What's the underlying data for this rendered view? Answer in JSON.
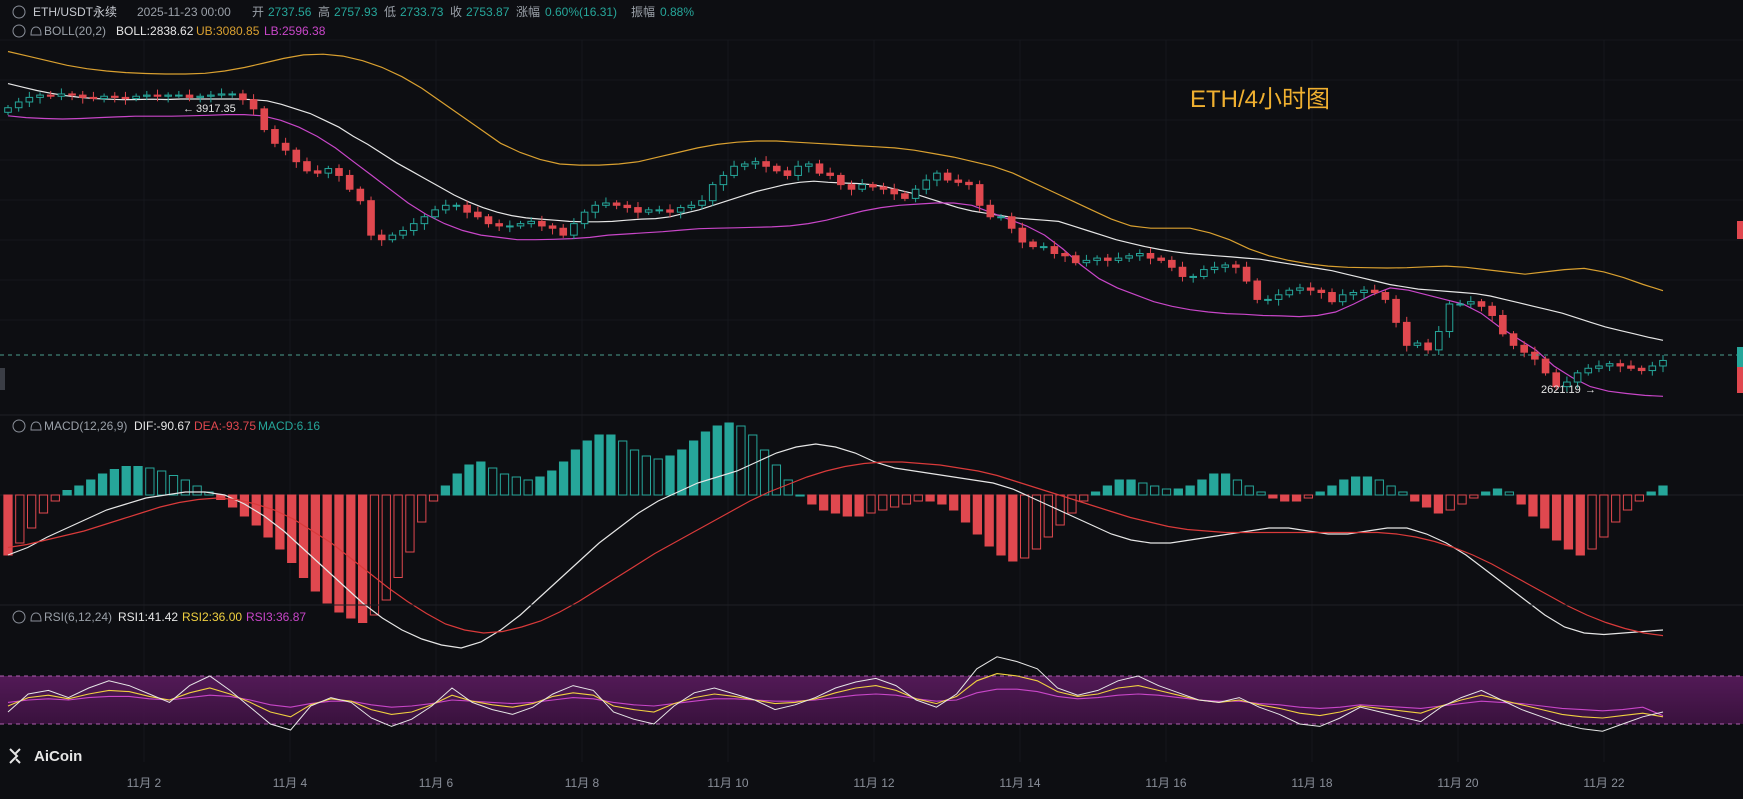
{
  "header": {
    "symbol": "ETH/USDT永续",
    "datetime": "2025-11-23 00:00",
    "open_label": "开",
    "open": "2737.56",
    "high_label": "高",
    "high": "2757.93",
    "low_label": "低",
    "low": "2733.73",
    "close_label": "收",
    "close": "2753.87",
    "change_label": "涨幅",
    "change": "0.60%(16.31)",
    "amplitude_label": "振幅",
    "amplitude": "0.88%"
  },
  "boll": {
    "name": "BOLL(20,2)",
    "boll": "BOLL:2838.62",
    "ub": "UB:3080.85",
    "lb": "LB:2596.38"
  },
  "macd": {
    "name": "MACD(12,26,9)",
    "dif": "DIF:-90.67",
    "dea": "DEA:-93.75",
    "macd": "MACD:6.16"
  },
  "rsi": {
    "name": "RSI(6,12,24)",
    "rsi1": "RSI1:41.42",
    "rsi2": "RSI2:36.00",
    "rsi3": "RSI3:36.87"
  },
  "annotation": "ETH/4小时图",
  "high_marker": "3917.35",
  "low_marker": "2621.19",
  "logo": "AiCoin",
  "colors": {
    "up": "#26a69a",
    "down": "#e0484f",
    "mid": "#e6e6e6",
    "ub": "#d9a030",
    "lb": "#c846c8",
    "dea": "#d93a3a",
    "rsi1": "#e6e6e6",
    "rsi2": "#f0d040",
    "rsi3": "#c846c8",
    "annotation": "#f0b030"
  },
  "chart_data": {
    "type": "candlestick",
    "interval": "4h",
    "x_ticks": [
      "11月 2",
      "11月 4",
      "11月 6",
      "11月 8",
      "11月 10",
      "11月 12",
      "11月 14",
      "11月 16",
      "11月 18",
      "11月 20",
      "11月 22"
    ],
    "close": [
      3855,
      3880,
      3900,
      3910,
      3905,
      3915,
      3910,
      3900,
      3895,
      3905,
      3900,
      3895,
      3905,
      3910,
      3905,
      3910,
      3910,
      3900,
      3905,
      3910,
      3915,
      3915,
      3890,
      3850,
      3760,
      3700,
      3670,
      3620,
      3580,
      3570,
      3590,
      3560,
      3500,
      3450,
      3300,
      3280,
      3300,
      3320,
      3350,
      3380,
      3410,
      3430,
      3430,
      3400,
      3380,
      3350,
      3340,
      3340,
      3350,
      3360,
      3340,
      3330,
      3300,
      3350,
      3400,
      3430,
      3440,
      3430,
      3420,
      3400,
      3410,
      3410,
      3400,
      3420,
      3430,
      3450,
      3520,
      3560,
      3600,
      3610,
      3620,
      3600,
      3580,
      3560,
      3600,
      3610,
      3570,
      3560,
      3520,
      3500,
      3520,
      3510,
      3500,
      3480,
      3460,
      3500,
      3540,
      3570,
      3540,
      3530,
      3520,
      3430,
      3380,
      3380,
      3330,
      3270,
      3250,
      3250,
      3220,
      3210,
      3180,
      3190,
      3200,
      3190,
      3200,
      3210,
      3220,
      3200,
      3190,
      3160,
      3120,
      3120,
      3150,
      3160,
      3170,
      3160,
      3100,
      3020,
      3020,
      3040,
      3060,
      3070,
      3060,
      3050,
      3010,
      3040,
      3050,
      3060,
      3050,
      3020,
      2920,
      2820,
      2830,
      2800,
      2880,
      3000,
      3000,
      3010,
      2990,
      2950,
      2870,
      2820,
      2790,
      2760,
      2700,
      2640,
      2660,
      2700,
      2720,
      2730,
      2740,
      2730,
      2720,
      2710,
      2730,
      2754
    ],
    "series": [
      {
        "name": "BOLL",
        "values": [
          3960,
          3945,
          3930,
          3918,
          3908,
          3900,
          3895,
          3892,
          3890,
          3891,
          3892,
          3891,
          3893,
          3893,
          3893,
          3893,
          3893,
          3890,
          3885,
          3870,
          3850,
          3830,
          3800,
          3770,
          3730,
          3695,
          3655,
          3615,
          3580,
          3545,
          3510,
          3475,
          3445,
          3420,
          3400,
          3385,
          3375,
          3370,
          3365,
          3360,
          3358,
          3358,
          3360,
          3365,
          3370,
          3372,
          3380,
          3395,
          3410,
          3430,
          3450,
          3470,
          3490,
          3505,
          3520,
          3530,
          3535,
          3530,
          3527,
          3525,
          3520,
          3510,
          3495,
          3480,
          3460,
          3440,
          3420,
          3405,
          3395,
          3385,
          3375,
          3370,
          3365,
          3360,
          3340,
          3320,
          3300,
          3280,
          3265,
          3250,
          3238,
          3228,
          3220,
          3215,
          3210,
          3205,
          3200,
          3195,
          3185,
          3175,
          3165,
          3155,
          3145,
          3130,
          3115,
          3100,
          3085,
          3075,
          3065,
          3060,
          3055,
          3050,
          3045,
          3035,
          3020,
          3005,
          2990,
          2975,
          2960,
          2940,
          2920,
          2900,
          2885,
          2870,
          2855,
          2842
        ]
      },
      {
        "name": "UB",
        "values": [
          4100,
          4080,
          4060,
          4040,
          4025,
          4015,
          4008,
          4004,
          4002,
          4002,
          4005,
          4015,
          4030,
          4050,
          4070,
          4085,
          4088,
          4080,
          4060,
          4030,
          3990,
          3940,
          3880,
          3820,
          3760,
          3700,
          3660,
          3630,
          3610,
          3605,
          3605,
          3610,
          3620,
          3640,
          3660,
          3680,
          3695,
          3705,
          3710,
          3710,
          3705,
          3700,
          3695,
          3690,
          3685,
          3680,
          3670,
          3655,
          3640,
          3620,
          3600,
          3570,
          3530,
          3490,
          3450,
          3410,
          3370,
          3340,
          3330,
          3330,
          3330,
          3310,
          3280,
          3240,
          3210,
          3190,
          3175,
          3165,
          3160,
          3158,
          3157,
          3158,
          3162,
          3165,
          3160,
          3150,
          3140,
          3130,
          3140,
          3150,
          3155,
          3140,
          3115,
          3085,
          3058
        ]
      },
      {
        "name": "LB",
        "values": [
          3820,
          3812,
          3808,
          3806,
          3808,
          3812,
          3815,
          3818,
          3818,
          3818,
          3820,
          3822,
          3825,
          3825,
          3820,
          3800,
          3770,
          3730,
          3680,
          3620,
          3560,
          3500,
          3440,
          3390,
          3350,
          3320,
          3300,
          3290,
          3280,
          3280,
          3282,
          3285,
          3290,
          3300,
          3305,
          3310,
          3315,
          3322,
          3328,
          3330,
          3332,
          3334,
          3336,
          3340,
          3350,
          3365,
          3385,
          3405,
          3420,
          3430,
          3435,
          3440,
          3440,
          3430,
          3400,
          3370,
          3340,
          3300,
          3240,
          3170,
          3110,
          3070,
          3040,
          3010,
          2990,
          2975,
          2965,
          2958,
          2955,
          2950,
          2948,
          2945,
          2950,
          2965,
          3000,
          3040,
          3070,
          3060,
          3040,
          3020,
          3000,
          2960,
          2900,
          2850,
          2800,
          2730,
          2680,
          2640,
          2620,
          2610,
          2602,
          2598
        ]
      }
    ],
    "macd": {
      "hist": [
        -40,
        -32,
        -22,
        -12,
        -4,
        3,
        6,
        10,
        14,
        17,
        19,
        19,
        18,
        16,
        13,
        10,
        6,
        2,
        -3,
        -8,
        -14,
        -20,
        -28,
        -36,
        -45,
        -55,
        -64,
        -72,
        -78,
        -82,
        -85,
        -80,
        -70,
        -55,
        -38,
        -18,
        -4,
        6,
        14,
        20,
        22,
        18,
        14,
        12,
        10,
        12,
        16,
        22,
        30,
        36,
        40,
        40,
        36,
        30,
        26,
        24,
        26,
        30,
        36,
        42,
        46,
        48,
        46,
        40,
        30,
        20,
        10,
        0,
        -6,
        -10,
        -12,
        -14,
        -14,
        -12,
        -10,
        -8,
        -6,
        -4,
        -4,
        -6,
        -10,
        -18,
        -26,
        -34,
        -40,
        -44,
        -42,
        -36,
        -28,
        -20,
        -12,
        -4,
        2,
        6,
        10,
        10,
        8,
        6,
        4,
        4,
        6,
        10,
        14,
        14,
        10,
        6,
        2,
        -2,
        -4,
        -4,
        -2,
        2,
        6,
        10,
        12,
        12,
        10,
        6,
        2,
        -4,
        -8,
        -12,
        -10,
        -6,
        -2,
        2,
        4,
        2,
        -6,
        -14,
        -22,
        -30,
        -36,
        -40,
        -36,
        -28,
        -18,
        -10,
        -4,
        2,
        6
      ],
      "dif": [
        -40,
        -35,
        -28,
        -22,
        -16,
        -10,
        -6,
        -2,
        0,
        2,
        2,
        0,
        -6,
        -14,
        -24,
        -36,
        -48,
        -60,
        -72,
        -82,
        -90,
        -96,
        -100,
        -102,
        -98,
        -90,
        -80,
        -68,
        -56,
        -44,
        -32,
        -22,
        -12,
        -4,
        2,
        8,
        12,
        16,
        22,
        28,
        32,
        34,
        32,
        28,
        22,
        18,
        16,
        14,
        12,
        10,
        8,
        4,
        -2,
        -8,
        -14,
        -20,
        -26,
        -30,
        -32,
        -32,
        -30,
        -28,
        -26,
        -24,
        -22,
        -22,
        -24,
        -26,
        -26,
        -24,
        -22,
        -22,
        -26,
        -32,
        -40,
        -50,
        -60,
        -70,
        -80,
        -88,
        -92,
        -93,
        -92,
        -91,
        -90
      ],
      "dea": [
        -35,
        -33,
        -30,
        -27,
        -24,
        -20,
        -16,
        -12,
        -8,
        -5,
        -3,
        -2,
        -3,
        -6,
        -10,
        -16,
        -24,
        -32,
        -42,
        -52,
        -62,
        -71,
        -79,
        -86,
        -90,
        -92,
        -91,
        -88,
        -84,
        -78,
        -71,
        -63,
        -55,
        -47,
        -39,
        -32,
        -25,
        -18,
        -11,
        -4,
        2,
        7,
        12,
        16,
        19,
        21,
        22,
        22,
        21,
        20,
        18,
        16,
        13,
        9,
        5,
        1,
        -3,
        -7,
        -11,
        -15,
        -18,
        -21,
        -23,
        -24,
        -25,
        -25,
        -25,
        -25,
        -25,
        -25,
        -25,
        -25,
        -25,
        -26,
        -28,
        -31,
        -35,
        -40,
        -46,
        -53,
        -60,
        -67,
        -74,
        -80,
        -85,
        -89,
        -92,
        -93.75
      ]
    },
    "rsi": {
      "range": [
        0,
        100
      ],
      "bands": [
        30,
        70
      ],
      "rsi1": [
        40,
        55,
        58,
        52,
        60,
        66,
        62,
        55,
        48,
        62,
        70,
        58,
        44,
        30,
        25,
        45,
        52,
        48,
        35,
        28,
        34,
        45,
        60,
        48,
        42,
        38,
        44,
        55,
        62,
        58,
        40,
        34,
        30,
        45,
        56,
        60,
        55,
        50,
        42,
        46,
        52,
        60,
        65,
        68,
        62,
        50,
        44,
        55,
        76,
        86,
        82,
        76,
        60,
        54,
        58,
        66,
        70,
        62,
        56,
        50,
        48,
        52,
        44,
        38,
        30,
        28,
        35,
        44,
        40,
        36,
        32,
        44,
        52,
        58,
        50,
        42,
        36,
        30,
        26,
        24,
        30,
        36,
        40
      ],
      "rsi2": [
        45,
        52,
        54,
        51,
        55,
        58,
        57,
        53,
        50,
        56,
        60,
        55,
        48,
        40,
        36,
        46,
        51,
        49,
        42,
        38,
        40,
        46,
        54,
        49,
        46,
        44,
        47,
        53,
        56,
        54,
        45,
        42,
        40,
        47,
        52,
        55,
        53,
        50,
        47,
        48,
        51,
        56,
        60,
        62,
        58,
        51,
        47,
        53,
        66,
        72,
        70,
        66,
        57,
        53,
        55,
        60,
        62,
        58,
        54,
        50,
        48,
        50,
        46,
        43,
        39,
        37,
        40,
        45,
        43,
        41,
        39,
        45,
        50,
        54,
        50,
        46,
        42,
        38,
        36,
        35,
        37,
        39,
        36
      ],
      "rsi3": [
        48,
        50,
        51,
        50,
        52,
        53,
        53,
        51,
        50,
        52,
        54,
        53,
        50,
        46,
        44,
        47,
        49,
        49,
        46,
        44,
        45,
        47,
        50,
        49,
        48,
        47,
        48,
        50,
        52,
        51,
        48,
        46,
        45,
        47,
        49,
        51,
        51,
        50,
        49,
        49,
        50,
        52,
        54,
        55,
        54,
        51,
        49,
        50,
        56,
        59,
        59,
        57,
        53,
        51,
        52,
        54,
        55,
        54,
        52,
        50,
        49,
        49,
        47,
        46,
        44,
        43,
        44,
        46,
        45,
        44,
        43,
        45,
        47,
        49,
        48,
        47,
        45,
        43,
        42,
        41,
        42,
        44,
        37
      ]
    }
  }
}
